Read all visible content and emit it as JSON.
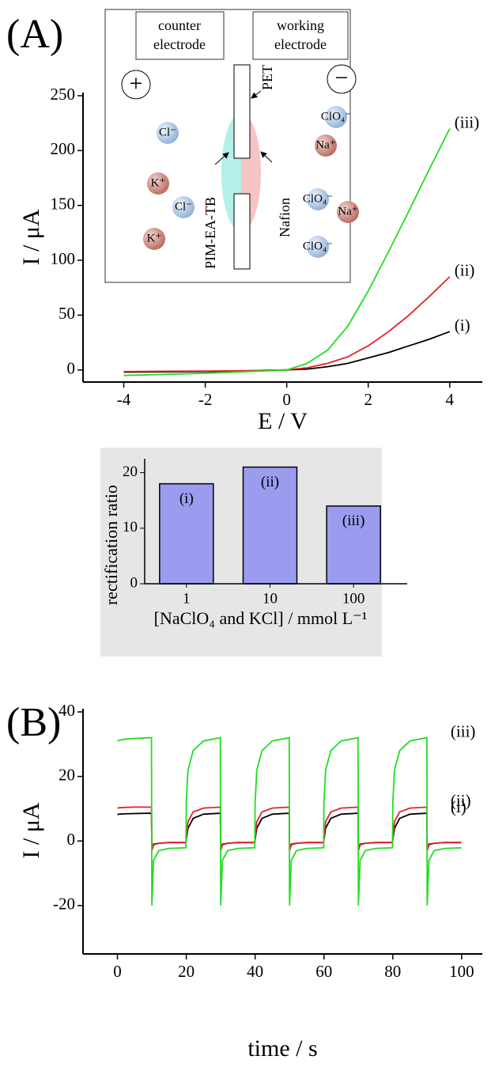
{
  "chart_data": [
    {
      "type": "line",
      "panel_label": "(A)",
      "xlabel": "E / V",
      "ylabel": "I / μA",
      "x": [
        -4,
        -3,
        -2,
        -1,
        -0.5,
        0,
        0.5,
        1,
        1.5,
        2,
        2.5,
        3,
        3.5,
        4
      ],
      "series": [
        {
          "name": "(i)",
          "color": "#000000",
          "values": [
            -2,
            -1.7,
            -1.4,
            -0.8,
            -0.4,
            0,
            0.8,
            3,
            6,
            11,
            16,
            22,
            28,
            35
          ]
        },
        {
          "name": "(ii)",
          "color": "#e8202a",
          "values": [
            -1.5,
            -1.2,
            -1,
            -0.6,
            -0.3,
            0,
            2,
            6,
            12,
            22,
            35,
            50,
            67,
            85
          ]
        },
        {
          "name": "(iii)",
          "color": "#22dd22",
          "values": [
            -5,
            -4,
            -3,
            -1.5,
            -0.8,
            0,
            6,
            18,
            40,
            72,
            108,
            145,
            183,
            220
          ]
        }
      ],
      "xlim": [
        -5,
        4.8
      ],
      "ylim": [
        -11,
        250
      ],
      "xticks": [
        -4,
        -2,
        0,
        2,
        4
      ],
      "yticks": [
        0,
        50,
        100,
        150,
        200,
        250
      ]
    },
    {
      "type": "line",
      "panel_label": "(B)",
      "xlabel": "time / s",
      "ylabel": "I / μA",
      "x": [
        0,
        0.5,
        2,
        5,
        9.9,
        10,
        10.5,
        12,
        15,
        19.9,
        20,
        20.5,
        22,
        25,
        29.9,
        30,
        30.5,
        32,
        35,
        39.9,
        40,
        40.5,
        42,
        45,
        49.9,
        50,
        50.5,
        52,
        55,
        59.9,
        60,
        60.5,
        62,
        65,
        69.9,
        70,
        70.5,
        72,
        75,
        79.9,
        80,
        80.5,
        82,
        85,
        89.9,
        90,
        90.5,
        92,
        95,
        99.9
      ],
      "series": [
        {
          "name": "(i)",
          "color": "#000000",
          "values": [
            8.2,
            8.3,
            8.4,
            8.5,
            8.6,
            -2.5,
            -1,
            -0.7,
            -0.5,
            -0.5,
            0.5,
            4,
            7,
            8.3,
            8.6,
            -2.5,
            -1,
            -0.7,
            -0.5,
            -0.5,
            0.5,
            4,
            7,
            8.3,
            8.6,
            -2.5,
            -1,
            -0.7,
            -0.5,
            -0.5,
            0.5,
            4,
            7,
            8.3,
            8.6,
            -2.5,
            -1,
            -0.7,
            -0.5,
            -0.5,
            0.5,
            4,
            7,
            8.3,
            8.6,
            -2.5,
            -1,
            -0.7,
            -0.5,
            -0.5
          ]
        },
        {
          "name": "(ii)",
          "color": "#e8202a",
          "values": [
            10.2,
            10.3,
            10.4,
            10.5,
            10.5,
            -3,
            -1.2,
            -0.7,
            -0.5,
            -0.5,
            1,
            6,
            9,
            10.2,
            10.5,
            -3,
            -1.2,
            -0.7,
            -0.5,
            -0.5,
            1,
            6,
            9,
            10.2,
            10.5,
            -3,
            -1.2,
            -0.7,
            -0.5,
            -0.5,
            1,
            6,
            9,
            10.2,
            10.5,
            -3,
            -1.2,
            -0.7,
            -0.5,
            -0.5,
            1,
            6,
            9,
            10.2,
            10.5,
            -3,
            -1.2,
            -0.7,
            -0.5,
            -0.5
          ]
        },
        {
          "name": "(iii)",
          "color": "#22dd22",
          "values": [
            31,
            31.2,
            31.5,
            31.8,
            32,
            -20,
            -6,
            -3,
            -2.3,
            -2.1,
            12,
            22,
            28,
            31,
            32,
            -20,
            -6,
            -3,
            -2.3,
            -2.1,
            12,
            22,
            28,
            31,
            32,
            -20,
            -6,
            -3,
            -2.3,
            -2.1,
            12,
            22,
            28,
            31,
            32,
            -20,
            -6,
            -3,
            -2.3,
            -2.1,
            12,
            22,
            28,
            31,
            32,
            -20,
            -6,
            -3,
            -2.3,
            -2.1
          ]
        }
      ],
      "xlim": [
        -10,
        106
      ],
      "ylim": [
        -35,
        40
      ],
      "xticks": [
        0,
        20,
        40,
        60,
        80,
        100
      ],
      "yticks": [
        -20,
        0,
        20,
        40
      ]
    },
    {
      "type": "bar",
      "xlabel": "[NaClO₄ and KCl] / mmol L⁻¹",
      "ylabel": "rectification ratio",
      "categories": [
        "1",
        "10",
        "100"
      ],
      "values": [
        18,
        21,
        14
      ],
      "annotations": [
        "(i)",
        "(ii)",
        "(iii)"
      ],
      "color": "#9b9bef",
      "ylim": [
        0,
        22.5
      ],
      "yticks": [
        0,
        10,
        20
      ]
    }
  ],
  "schematic": {
    "electrodes": [
      [
        "counter",
        "electrode"
      ],
      [
        "working",
        "electrode"
      ]
    ],
    "signs": [
      "+",
      "−"
    ],
    "membrane_labels": [
      "PET",
      "PIM-EA-TB",
      "Nafion"
    ],
    "ions": [
      "Cl⁻",
      "K⁺",
      "Cl⁻",
      "K⁺",
      "ClO₄⁻",
      "Na⁺",
      "ClO₄⁻",
      "Na⁺",
      "ClO₄⁻"
    ]
  }
}
